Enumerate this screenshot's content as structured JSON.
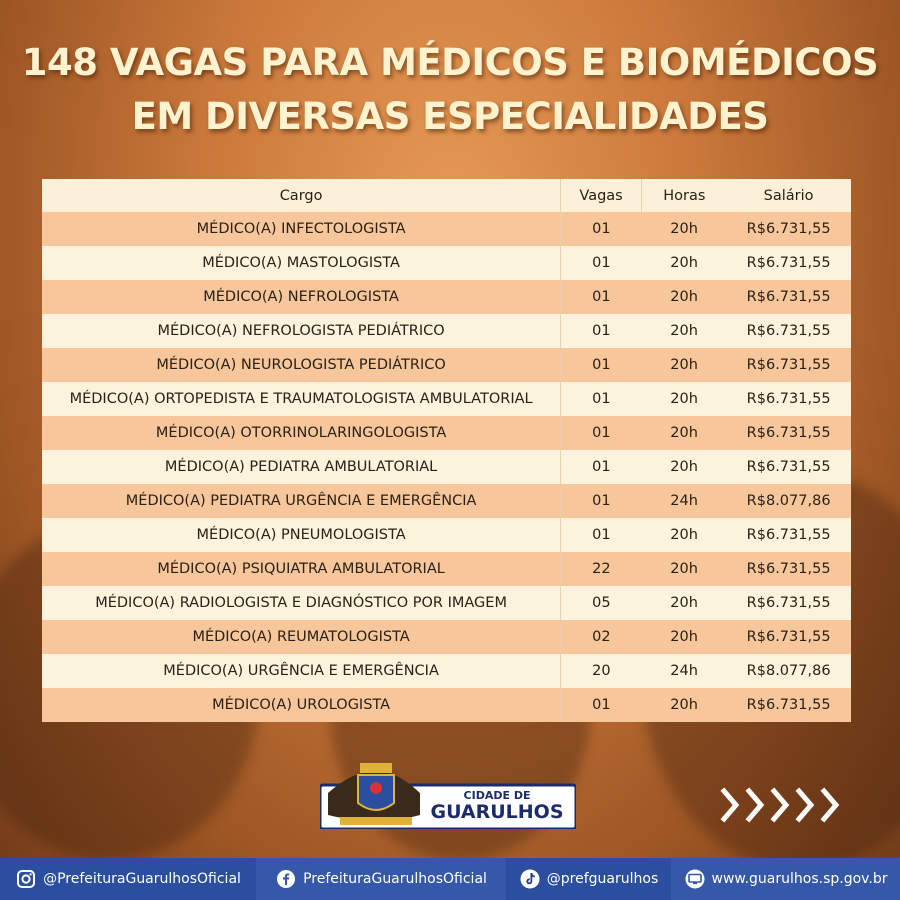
{
  "title": {
    "line1": "148 VAGAS PARA MÉDICOS E BIOMÉDICOS",
    "line2": "EM DIVERSAS ESPECIALIDADES"
  },
  "table": {
    "headers": [
      "Cargo",
      "Vagas",
      "Horas",
      "Salário"
    ],
    "rows": [
      [
        "MÉDICO(A) INFECTOLOGISTA",
        "01",
        "20h",
        "R$6.731,55"
      ],
      [
        "MÉDICO(A) MASTOLOGISTA",
        "01",
        "20h",
        "R$6.731,55"
      ],
      [
        "MÉDICO(A) NEFROLOGISTA",
        "01",
        "20h",
        "R$6.731,55"
      ],
      [
        "MÉDICO(A) NEFROLOGISTA PEDIÁTRICO",
        "01",
        "20h",
        "R$6.731,55"
      ],
      [
        "MÉDICO(A) NEUROLOGISTA PEDIÁTRICO",
        "01",
        "20h",
        "R$6.731,55"
      ],
      [
        "MÉDICO(A) ORTOPEDISTA E TRAUMATOLOGISTA AMBULATORIAL",
        "01",
        "20h",
        "R$6.731,55"
      ],
      [
        "MÉDICO(A) OTORRINOLARINGOLOGISTA",
        "01",
        "20h",
        "R$6.731,55"
      ],
      [
        "MÉDICO(A) PEDIATRA AMBULATORIAL",
        "01",
        "20h",
        "R$6.731,55"
      ],
      [
        "MÉDICO(A) PEDIATRA URGÊNCIA E EMERGÊNCIA",
        "01",
        "24h",
        "R$8.077,86"
      ],
      [
        "MÉDICO(A) PNEUMOLOGISTA",
        "01",
        "20h",
        "R$6.731,55"
      ],
      [
        "MÉDICO(A) PSIQUIATRA AMBULATORIAL",
        "22",
        "20h",
        "R$6.731,55"
      ],
      [
        "MÉDICO(A) RADIOLOGISTA E DIAGNÓSTICO POR IMAGEM",
        "05",
        "20h",
        "R$6.731,55"
      ],
      [
        "MÉDICO(A) REUMATOLOGISTA",
        "02",
        "20h",
        "R$6.731,55"
      ],
      [
        "MÉDICO(A) URGÊNCIA E EMERGÊNCIA",
        "20",
        "24h",
        "R$8.077,86"
      ],
      [
        "MÉDICO(A) UROLOGISTA",
        "01",
        "20h",
        "R$6.731,55"
      ]
    ]
  },
  "logo": {
    "top_text": "CIDADE DE",
    "main_text": "GUARULHOS"
  },
  "footer": {
    "instagram": "@PrefeituraGuarulhosOficial",
    "facebook": "PrefeituraGuarulhosOficial",
    "tiktok": "@prefguarulhos",
    "website": "www.guarulhos.sp.gov.br",
    "icons": [
      "instagram-icon",
      "facebook-icon",
      "tiktok-icon",
      "monitor-icon"
    ]
  },
  "colors": {
    "background": "#c9773a",
    "title_text": "#fff3cf",
    "row_odd": "#f7c69b",
    "row_even": "#fcf3dc",
    "footer_blue": "#2b4f9e"
  }
}
